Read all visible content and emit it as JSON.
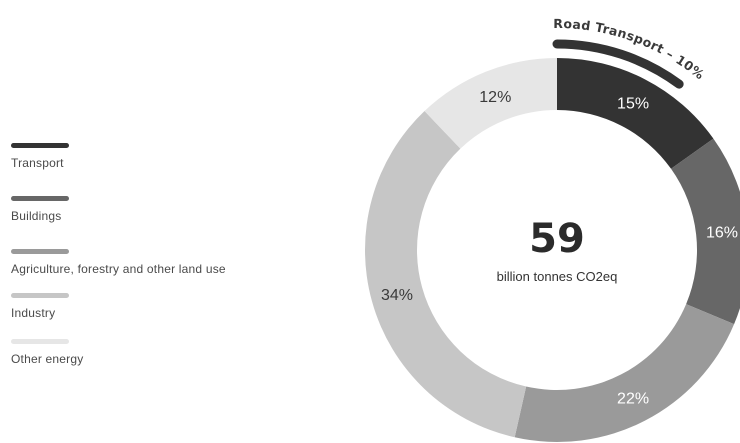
{
  "chart_data": {
    "type": "donut",
    "center_value": "59",
    "center_caption": "billion tonnes CO2eq",
    "slices": [
      {
        "name": "Transport",
        "value": 15,
        "label": "15%",
        "color": "#333333",
        "label_color": "#ffffff"
      },
      {
        "name": "Buildings",
        "value": 16,
        "label": "16%",
        "color": "#676767",
        "label_color": "#ffffff"
      },
      {
        "name": "Agriculture, forestry and other land use",
        "value": 22,
        "label": "22%",
        "color": "#9a9a9a",
        "label_color": "#ffffff"
      },
      {
        "name": "Industry",
        "value": 34,
        "label": "34%",
        "color": "#c6c6c6",
        "label_color": "#3a3a3a"
      },
      {
        "name": "Other energy",
        "value": 12,
        "label": "12%",
        "color": "#e6e6e6",
        "label_color": "#3a3a3a"
      }
    ],
    "sub_segment": {
      "label": "Road Transport – 10%",
      "value": 10,
      "parent": "Transport",
      "color": "#333333"
    }
  },
  "legend": {
    "items": [
      {
        "label": "Transport",
        "color": "#333333"
      },
      {
        "label": "Buildings",
        "color": "#676767"
      },
      {
        "label": "Agriculture, forestry and other land use",
        "color": "#9a9a9a"
      },
      {
        "label": "Industry",
        "color": "#c6c6c6"
      },
      {
        "label": "Other energy",
        "color": "#e6e6e6"
      }
    ]
  }
}
